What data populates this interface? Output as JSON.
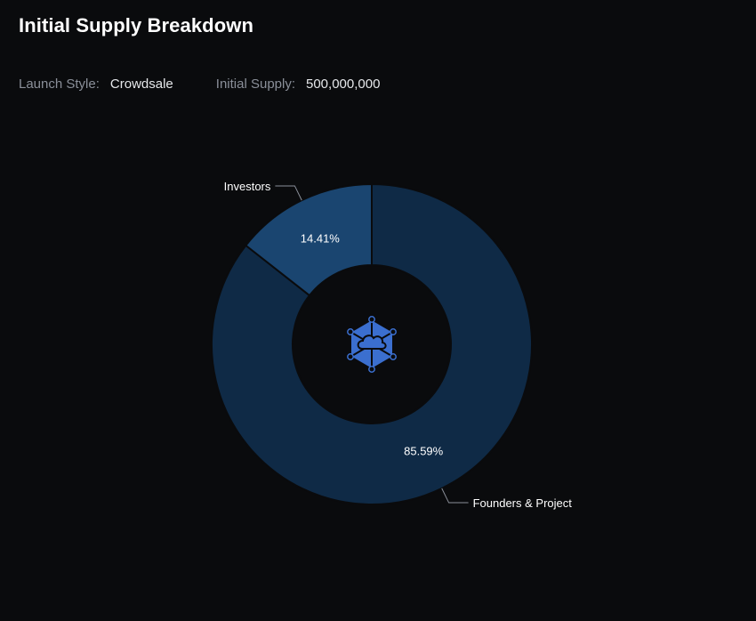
{
  "title": "Initial Supply Breakdown",
  "meta": {
    "launch_style_label": "Launch Style:",
    "launch_style_value": "Crowdsale",
    "initial_supply_label": "Initial Supply:",
    "initial_supply_value": "500,000,000"
  },
  "chart_data": {
    "type": "pie",
    "donut": true,
    "center_icon": "network-hexagon-logo-icon",
    "slices": [
      {
        "name": "Founders & Project",
        "value": 85.59,
        "label": "85.59%",
        "color": "#0f2a46"
      },
      {
        "name": "Investors",
        "value": 14.41,
        "label": "14.41%",
        "color": "#1a4570"
      }
    ],
    "legend": "none",
    "colors": {
      "background": "#0a0b0d",
      "slice_border": "#0a0b0d",
      "leader_line": "#8a8f99",
      "logo": "#3b6fcf"
    }
  }
}
